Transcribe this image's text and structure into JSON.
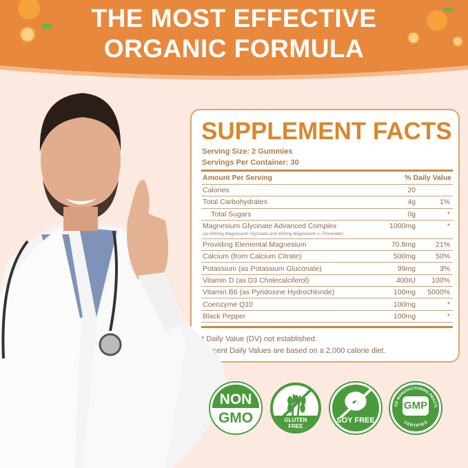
{
  "headline": {
    "line1": "THE MOST EFFECTIVE",
    "line2": "ORGANIC FORMULA"
  },
  "colors": {
    "banner": "#e8883c",
    "accent": "#d9862e",
    "badge_green": "#4a9b3c",
    "background": "#fce9df"
  },
  "facts": {
    "title": "SUPPLEMENT FACTS",
    "serving_size": "Serving Size: 2 Gummies",
    "servings_per_container": "Servings Per Container: 30",
    "header_amount": "Amount Per Serving",
    "header_dv": "% Daily Value",
    "rows": [
      {
        "name": "Calories",
        "amount": "20",
        "dv": ""
      },
      {
        "name": "Total Carbohydrates",
        "amount": "4g",
        "dv": "1%"
      },
      {
        "name": "Total Sugars",
        "amount": "0g",
        "dv": "*"
      },
      {
        "name": "Magnesium Glycinate Advanced Complex",
        "sub": "(as 600mg Magnesium Glycinate and 400mg Magnesium L-Threonate)",
        "amount": "1000mg",
        "dv": "*"
      },
      {
        "name": "Providing Elemental Magnesium",
        "amount": "70.8mg",
        "dv": "21%"
      },
      {
        "name": "Calcium (from Calcium Citrate)",
        "amount": "500mg",
        "dv": "50%"
      },
      {
        "name": "Potassium (as Potassium Gluconate)",
        "amount": "99mg",
        "dv": "3%"
      },
      {
        "name": "Vitamin D (as D3 Cholecalciferol)",
        "amount": "400IU",
        "dv": "100%"
      },
      {
        "name": "Vitamin B6 (as Pyridoxine Hydrochloride)",
        "amount": "100mg",
        "dv": "5000%"
      },
      {
        "name": "Coenzyme Q10",
        "amount": "100mg",
        "dv": "*"
      },
      {
        "name": "Black Pepper",
        "amount": "100mg",
        "dv": "*"
      }
    ],
    "footnote1": "* Daily Value (DV) not established.",
    "footnote2": "Percent Daily Values are based on a 2,000 calorie diet."
  },
  "badges": [
    {
      "icon": "non-gmo-icon",
      "line1": "NON",
      "line2": "GMO"
    },
    {
      "icon": "gluten-free-icon",
      "line1": "GLUTEN",
      "line2": "FREE"
    },
    {
      "icon": "soy-free-icon",
      "line1": "SOY FREE"
    },
    {
      "icon": "gmp-icon",
      "line1": "GMP",
      "ring_top": "GOOD MANUFACTURING PRACTICE",
      "ring_bottom": "CERTIFIED"
    }
  ]
}
